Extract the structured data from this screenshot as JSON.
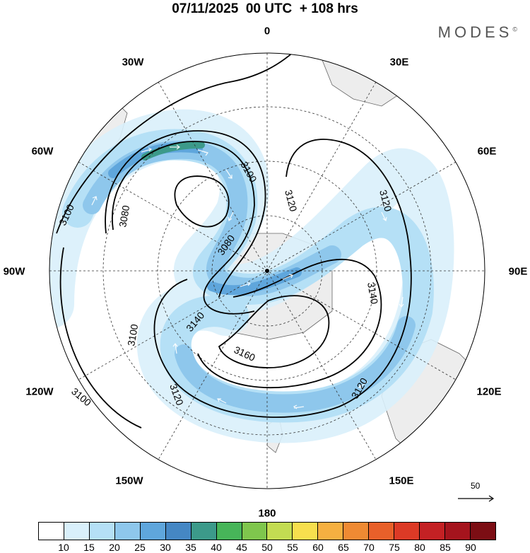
{
  "title": "07/11/2025  00 UTC  + 108 hrs",
  "logo": "MODES",
  "logo_mark": "©",
  "longitude_labels": {
    "lon_0": "0",
    "lon_30e": "30E",
    "lon_60e": "60E",
    "lon_90e": "90E",
    "lon_120e": "120E",
    "lon_150e": "150E",
    "lon_180": "180",
    "lon_150w": "150W",
    "lon_120w": "120W",
    "lon_90w": "90W",
    "lon_60w": "60W",
    "lon_30w": "30W"
  },
  "contour_labels": {
    "c1": "3100",
    "c2": "3080",
    "c3": "3100",
    "c4": "3120",
    "c5": "3080",
    "c6": "3120",
    "c7": "3140",
    "c8": "3140",
    "c9": "3100",
    "c10": "3160",
    "c11": "3120",
    "c12": "3120",
    "c13": "3100"
  },
  "vector_scale": "50",
  "colorbar": {
    "labels": [
      "10",
      "15",
      "20",
      "25",
      "30",
      "35",
      "40",
      "45",
      "50",
      "55",
      "60",
      "65",
      "70",
      "75",
      "80",
      "85",
      "90"
    ],
    "colors": [
      "#ffffff",
      "#d9f0fb",
      "#b5e0f6",
      "#8ec7ec",
      "#5fa6dc",
      "#4587c4",
      "#3c9a8a",
      "#47b559",
      "#7fc64d",
      "#c3dc52",
      "#f7df4e",
      "#f5b041",
      "#ef8a33",
      "#e8602a",
      "#dc3a26",
      "#c42124",
      "#a5141d",
      "#7c0e14"
    ]
  },
  "map": {
    "land_color": "#ededed",
    "jet_colors": [
      "#d9f0fb",
      "#b5e0f6",
      "#8ec7ec",
      "#5fa6dc",
      "#4587c4",
      "#3c9a8a"
    ]
  }
}
